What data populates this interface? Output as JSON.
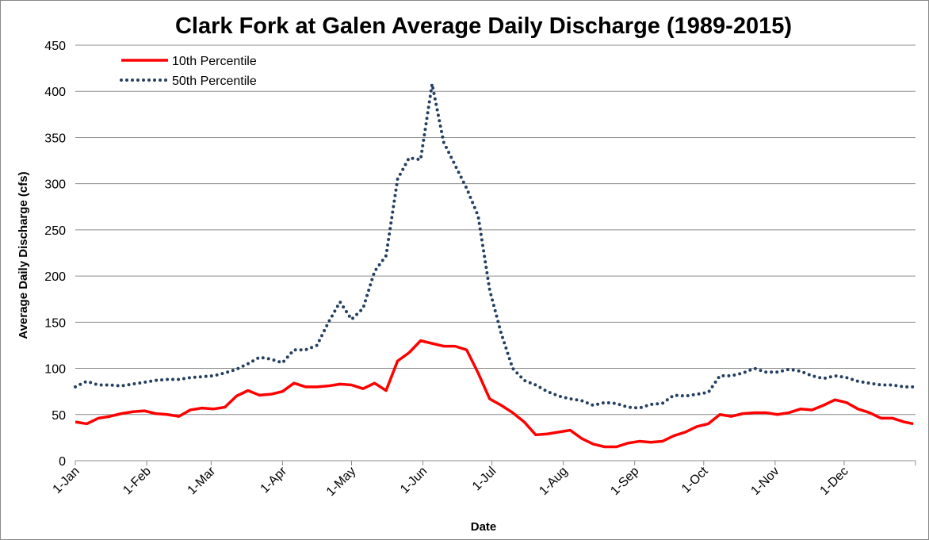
{
  "chart_data": {
    "type": "line",
    "title": "Clark Fork at Galen Average Daily Discharge (1989-2015)",
    "x_label": "Date",
    "y_label": "Average Daily Discharge (cfs)",
    "x": [
      1,
      6,
      11,
      16,
      21,
      26,
      31,
      36,
      41,
      46,
      51,
      56,
      61,
      66,
      71,
      76,
      81,
      86,
      91,
      96,
      101,
      106,
      111,
      116,
      121,
      126,
      131,
      136,
      141,
      146,
      151,
      156,
      161,
      166,
      171,
      176,
      181,
      186,
      191,
      196,
      201,
      206,
      211,
      216,
      221,
      226,
      231,
      236,
      241,
      246,
      251,
      256,
      261,
      266,
      271,
      276,
      281,
      286,
      291,
      296,
      301,
      306,
      311,
      316,
      321,
      326,
      331,
      336,
      341,
      346,
      351,
      356,
      361,
      365
    ],
    "series": [
      {
        "name": "10th Percentile",
        "color": "#ff0000",
        "style": "solid",
        "values": [
          42,
          40,
          46,
          48,
          51,
          53,
          54,
          51,
          50,
          48,
          55,
          57,
          56,
          58,
          70,
          76,
          71,
          72,
          75,
          84,
          80,
          80,
          81,
          83,
          82,
          78,
          84,
          76,
          108,
          117,
          130,
          127,
          124,
          124,
          120,
          95,
          67,
          60,
          52,
          42,
          28,
          29,
          31,
          33,
          24,
          18,
          15,
          15,
          19,
          21,
          20,
          21,
          27,
          31,
          37,
          40,
          50,
          48,
          51,
          52,
          52,
          50,
          52,
          56,
          55,
          60,
          66,
          63,
          56,
          52,
          46,
          46,
          42,
          40
        ]
      },
      {
        "name": "50th Percentile",
        "color": "#243f60",
        "style": "dotted",
        "values": [
          80,
          86,
          82,
          82,
          81,
          83,
          85,
          87,
          88,
          88,
          90,
          91,
          92,
          95,
          99,
          105,
          112,
          110,
          106,
          120,
          120,
          125,
          150,
          172,
          153,
          165,
          205,
          222,
          305,
          328,
          326,
          408,
          345,
          320,
          295,
          265,
          185,
          138,
          100,
          87,
          82,
          75,
          70,
          67,
          65,
          60,
          63,
          62,
          58,
          57,
          61,
          62,
          71,
          70,
          72,
          74,
          92,
          92,
          95,
          100,
          96,
          96,
          99,
          97,
          92,
          89,
          92,
          90,
          86,
          84,
          82,
          82,
          80,
          80
        ]
      }
    ],
    "xlim": [
      1,
      366
    ],
    "xticks": [
      {
        "value": 1,
        "label": "1-Jan"
      },
      {
        "value": 32,
        "label": "1-Feb"
      },
      {
        "value": 60,
        "label": "1-Mar"
      },
      {
        "value": 91,
        "label": "1-Apr"
      },
      {
        "value": 121,
        "label": "1-May"
      },
      {
        "value": 152,
        "label": "1-Jun"
      },
      {
        "value": 182,
        "label": "1-Jul"
      },
      {
        "value": 213,
        "label": "1-Aug"
      },
      {
        "value": 244,
        "label": "1-Sep"
      },
      {
        "value": 274,
        "label": "1-Oct"
      },
      {
        "value": 305,
        "label": "1-Nov"
      },
      {
        "value": 335,
        "label": "1-Dec"
      }
    ],
    "ylim": [
      0,
      450
    ],
    "yticks": [
      0,
      50,
      100,
      150,
      200,
      250,
      300,
      350,
      400,
      450
    ],
    "grid": true,
    "legend": "top-left"
  }
}
